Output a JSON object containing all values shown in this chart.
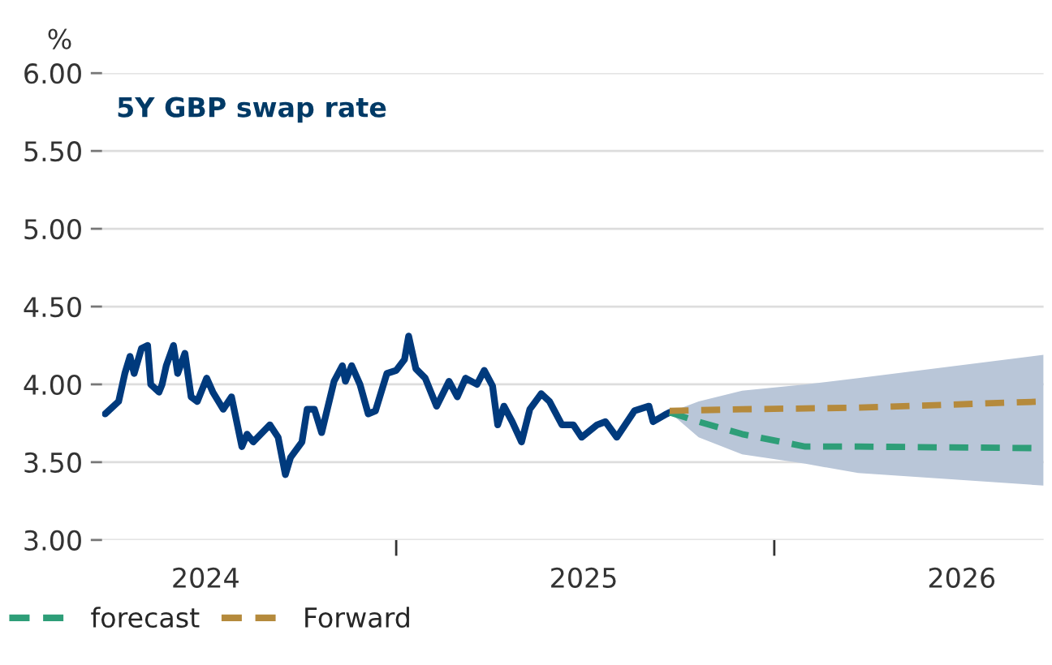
{
  "chart_data": {
    "type": "line",
    "title": "5Y GBP swap rate",
    "ylabel": "%",
    "ylim": [
      3.0,
      6.0
    ],
    "yticks": [
      {
        "value": 3.0,
        "label": "3.00"
      },
      {
        "value": 3.5,
        "label": "3.50"
      },
      {
        "value": 4.0,
        "label": "4.00"
      },
      {
        "value": 4.5,
        "label": "4.50"
      },
      {
        "value": 5.0,
        "label": "5.00"
      },
      {
        "value": 5.5,
        "label": "5.50"
      },
      {
        "value": 6.0,
        "label": "6.00"
      }
    ],
    "xlim": [
      "2024-03-23",
      "2026-09-18"
    ],
    "xticks": [
      {
        "value": "2024-07-01",
        "label": "2024"
      },
      {
        "value": "2025-01-01",
        "label": null
      },
      {
        "value": "2025-07-01",
        "label": "2025"
      },
      {
        "value": "2026-01-01",
        "label": null
      },
      {
        "value": "2026-07-01",
        "label": "2026"
      }
    ],
    "grid": "y",
    "legend": "bottom left",
    "series": [
      {
        "color": "#003a7d",
        "line_style": "solid",
        "x": [
          "2024-03-26",
          "2024-04-08",
          "2024-04-14",
          "2024-04-19",
          "2024-04-23",
          "2024-04-30",
          "2024-05-06",
          "2024-05-09",
          "2024-05-17",
          "2024-05-20",
          "2024-05-24",
          "2024-05-31",
          "2024-06-04",
          "2024-06-11",
          "2024-06-17",
          "2024-06-23",
          "2024-07-02",
          "2024-07-08",
          "2024-07-18",
          "2024-07-26",
          "2024-08-05",
          "2024-08-10",
          "2024-08-16",
          "2024-09-01",
          "2024-09-09",
          "2024-09-16",
          "2024-09-21",
          "2024-10-02",
          "2024-10-07",
          "2024-10-14",
          "2024-10-21",
          "2024-11-02",
          "2024-11-10",
          "2024-11-13",
          "2024-11-19",
          "2024-11-27",
          "2024-12-05",
          "2024-12-12",
          "2024-12-23",
          "2025-01-01",
          "2025-01-09",
          "2025-01-13",
          "2025-01-20",
          "2025-01-29",
          "2025-02-09",
          "2025-02-21",
          "2025-03-01",
          "2025-03-09",
          "2025-03-20",
          "2025-03-27",
          "2025-04-04",
          "2025-04-09",
          "2025-04-15",
          "2025-04-23",
          "2025-05-02",
          "2025-05-10",
          "2025-05-21",
          "2025-05-29",
          "2025-06-10",
          "2025-06-21",
          "2025-06-29",
          "2025-07-14",
          "2025-07-22",
          "2025-08-02",
          "2025-08-19",
          "2025-09-02",
          "2025-09-06",
          "2025-09-19",
          "2025-09-22"
        ],
        "values": [
          3.81,
          3.89,
          4.07,
          4.18,
          4.07,
          4.23,
          4.25,
          4.0,
          3.95,
          4.0,
          4.12,
          4.25,
          4.07,
          4.2,
          3.92,
          3.89,
          4.04,
          3.95,
          3.84,
          3.92,
          3.6,
          3.68,
          3.63,
          3.74,
          3.66,
          3.42,
          3.53,
          3.63,
          3.84,
          3.84,
          3.69,
          4.02,
          4.12,
          4.02,
          4.12,
          4.0,
          3.81,
          3.83,
          4.07,
          4.09,
          4.16,
          4.31,
          4.1,
          4.04,
          3.86,
          4.02,
          3.92,
          4.04,
          4.0,
          4.09,
          3.99,
          3.74,
          3.86,
          3.76,
          3.63,
          3.84,
          3.94,
          3.89,
          3.74,
          3.74,
          3.66,
          3.74,
          3.76,
          3.66,
          3.83,
          3.86,
          3.76,
          3.81,
          3.82
        ]
      },
      {
        "name": "forecast",
        "color": "#2e9e78",
        "line_style": "dashed",
        "x": [
          "2025-09-22",
          "2025-10-20",
          "2025-12-01",
          "2026-01-31",
          "2026-03-23",
          "2026-09-18"
        ],
        "values": [
          3.82,
          3.76,
          3.68,
          3.6,
          3.6,
          3.59
        ],
        "lower": [
          3.82,
          3.66,
          3.55,
          3.49,
          3.43,
          3.35
        ],
        "upper": [
          3.82,
          3.89,
          3.96,
          4.0,
          4.04,
          4.19
        ]
      },
      {
        "name": "Forward",
        "color": "#b58a3c",
        "line_style": "dashed",
        "x": [
          "2025-09-22",
          "2025-12-01",
          "2026-03-23",
          "2026-09-18"
        ],
        "values": [
          3.83,
          3.84,
          3.85,
          3.89
        ]
      }
    ]
  }
}
